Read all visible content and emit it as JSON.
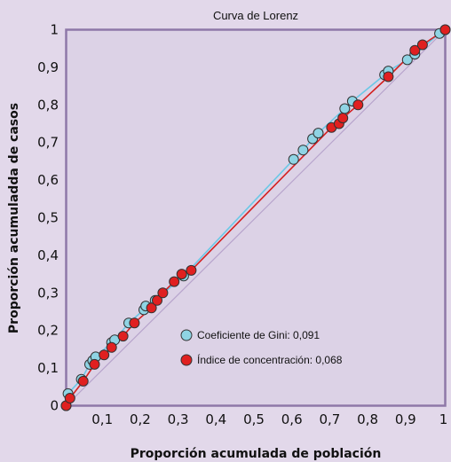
{
  "chart_data": {
    "type": "scatter",
    "title": "Curva de Lorenz",
    "xlabel": "Proporción acumulada de población",
    "ylabel": "Proporción acumuladda de casos",
    "xlim": [
      0,
      1
    ],
    "ylim": [
      0,
      1
    ],
    "x_ticks": [
      "0,1",
      "0,2",
      "0,3",
      "0,4",
      "0,5",
      "0,6",
      "0,7",
      "0,8",
      "0,9",
      "1"
    ],
    "y_ticks": [
      "0",
      "0,1",
      "0,2",
      "0,3",
      "0,4",
      "0,5",
      "0,6",
      "0,7",
      "0,8",
      "0,9",
      "1"
    ],
    "grid": false,
    "legend_position": "center",
    "series": [
      {
        "name": "Coeficiente de Gini: 0,091",
        "color": "#8fd4e4",
        "line_color": "#6bc8e6",
        "points": [
          [
            0,
            0
          ],
          [
            0.005,
            0.032
          ],
          [
            0.04,
            0.07
          ],
          [
            0.062,
            0.11
          ],
          [
            0.07,
            0.12
          ],
          [
            0.078,
            0.13
          ],
          [
            0.12,
            0.168
          ],
          [
            0.128,
            0.175
          ],
          [
            0.165,
            0.22
          ],
          [
            0.205,
            0.255
          ],
          [
            0.21,
            0.265
          ],
          [
            0.235,
            0.28
          ],
          [
            0.31,
            0.345
          ],
          [
            0.6,
            0.655
          ],
          [
            0.625,
            0.68
          ],
          [
            0.65,
            0.71
          ],
          [
            0.665,
            0.725
          ],
          [
            0.735,
            0.79
          ],
          [
            0.755,
            0.81
          ],
          [
            0.84,
            0.88
          ],
          [
            0.85,
            0.89
          ],
          [
            0.9,
            0.92
          ],
          [
            0.92,
            0.935
          ],
          [
            0.985,
            0.99
          ],
          [
            1,
            1
          ]
        ]
      },
      {
        "name": "Índice de concentración: 0,068",
        "color": "#e02020",
        "line_color": "#d42020",
        "points": [
          [
            0,
            0
          ],
          [
            0.01,
            0.02
          ],
          [
            0.045,
            0.065
          ],
          [
            0.075,
            0.11
          ],
          [
            0.1,
            0.135
          ],
          [
            0.12,
            0.155
          ],
          [
            0.15,
            0.185
          ],
          [
            0.18,
            0.22
          ],
          [
            0.225,
            0.26
          ],
          [
            0.24,
            0.28
          ],
          [
            0.255,
            0.3
          ],
          [
            0.285,
            0.33
          ],
          [
            0.305,
            0.35
          ],
          [
            0.33,
            0.36
          ],
          [
            0.7,
            0.74
          ],
          [
            0.72,
            0.75
          ],
          [
            0.73,
            0.765
          ],
          [
            0.77,
            0.8
          ],
          [
            0.85,
            0.875
          ],
          [
            0.92,
            0.945
          ],
          [
            0.94,
            0.96
          ],
          [
            1,
            1
          ]
        ]
      }
    ]
  }
}
